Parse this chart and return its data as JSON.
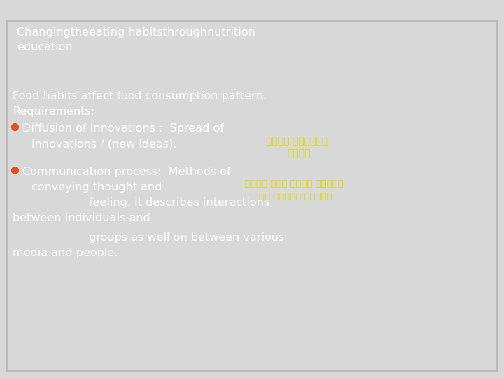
{
  "title_line1": "Changingtheeating habitsthroughnutrition",
  "title_line2": "education",
  "title_bg": "#1F7FD0",
  "title_color": "#FFFFFF",
  "body_bg": "#0B1B6E",
  "body_text_color": "#FFFFFF",
  "bullet_color": "#E05020",
  "arabic_color": "#DDDD00",
  "outer_bg": "#D8D8D8",
  "slide_border": "#BBBBBB",
  "line1": "Food habits affect food consumption pattern.",
  "line2": "Requirements:",
  "bullet1_main": "Diffusion of innovations :  Spread of",
  "bullet1_sub": "innovations / (new ideas).",
  "bullet2_main": "Communication process:  Methods of",
  "bullet2_sub1": "conveying thought and",
  "bullet2_sub2": "                feeling, it describes interactions",
  "bullet2_sub3": "between individuals and",
  "bullet2_sub4": "                groups as well on between various",
  "bullet2_sub5": "media and people.",
  "figsize": [
    7.2,
    5.4
  ],
  "dpi": 100
}
